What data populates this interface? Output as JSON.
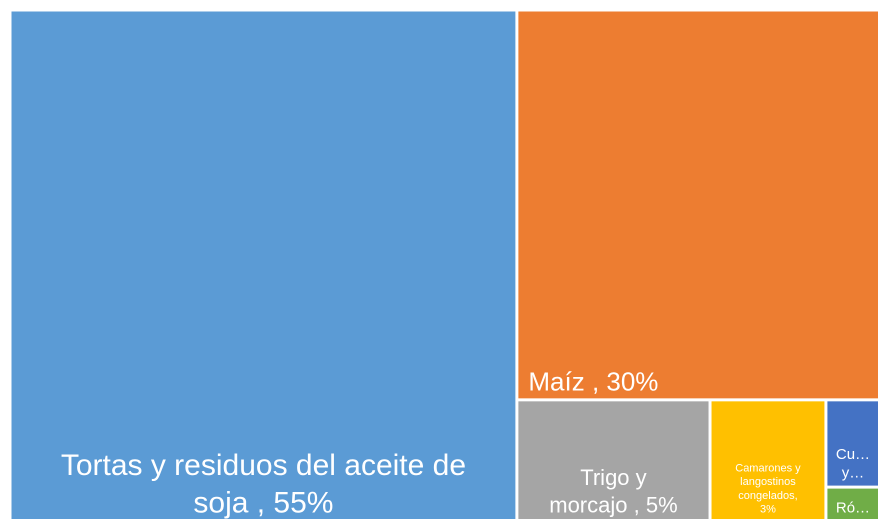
{
  "chart_data": {
    "type": "treemap",
    "labels": [
      [
        "Tortas y  residuos del aceite de",
        "soja , 55%"
      ],
      [
        "Maíz , 30%"
      ],
      [
        "Trigo y",
        "morcajo , 5%"
      ],
      [
        "Camarones y",
        "langostinos",
        "congelados,",
        "3%"
      ],
      [
        "Cu…",
        "y…"
      ],
      [
        "Ró…"
      ]
    ],
    "values": [
      55,
      30,
      5,
      3,
      1,
      0.4
    ],
    "colors": [
      "#5b9bd5",
      "#ed7d31",
      "#a5a5a5",
      "#ffc000",
      "#4472c4",
      "#70ad47"
    ]
  }
}
